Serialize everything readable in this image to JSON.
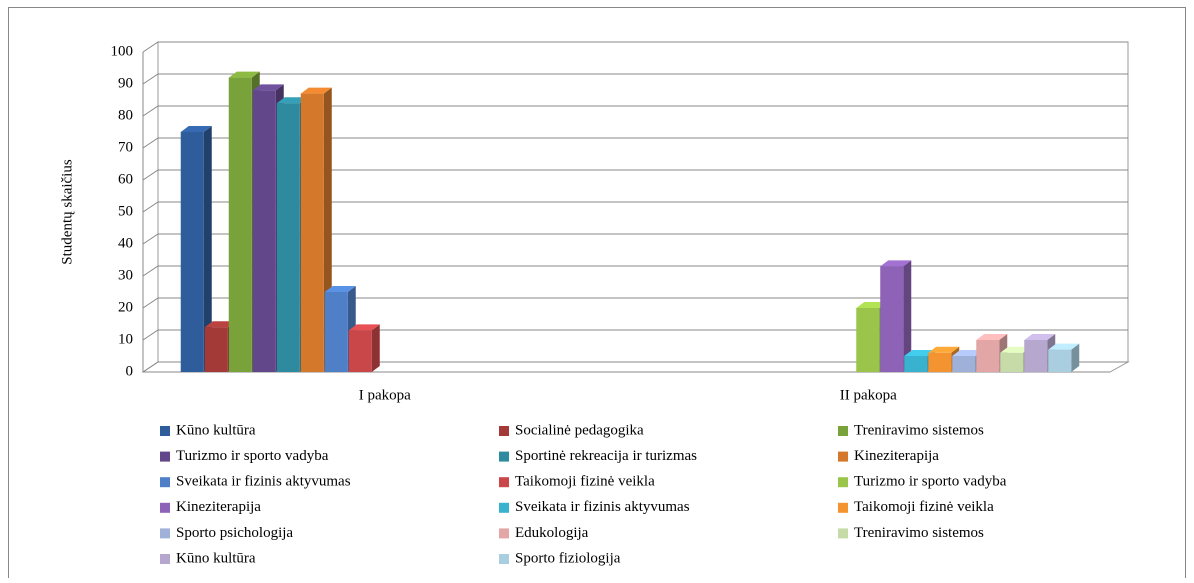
{
  "chart_data": {
    "type": "bar3d",
    "y_label": "Studentų skaičius",
    "categories": [
      "I pakopa",
      "II pakopa"
    ],
    "ylim": [
      0,
      100
    ],
    "yticks": [
      0,
      10,
      20,
      30,
      40,
      50,
      60,
      70,
      80,
      90,
      100
    ],
    "grid": true,
    "legend": "bottom",
    "series": [
      {
        "name": "Kūno kultūra",
        "color": "#2f5d9c",
        "values": [
          75,
          null
        ]
      },
      {
        "name": "Socialinė pedagogika",
        "color": "#a33a37",
        "values": [
          14,
          null
        ]
      },
      {
        "name": "Treniravimo sistemos",
        "color": "#7aa23a",
        "values": [
          92,
          null
        ]
      },
      {
        "name": "Turizmo ir sporto vadyba",
        "color": "#62478a",
        "values": [
          88,
          null
        ]
      },
      {
        "name": "Sportinė rekreacija ir turizmas",
        "color": "#2e8b9f",
        "values": [
          84,
          null
        ]
      },
      {
        "name": "Kineziterapija",
        "color": "#d4792b",
        "values": [
          87,
          null
        ]
      },
      {
        "name": "Sveikata ir fizinis aktyvumas",
        "color": "#4e7fc7",
        "values": [
          25,
          null
        ]
      },
      {
        "name": "Taikomoji fizinė veikla",
        "color": "#c94649",
        "values": [
          13,
          null
        ]
      },
      {
        "name": "Turizmo ir sporto vadyba",
        "color": "#9bc54a",
        "values": [
          null,
          20
        ]
      },
      {
        "name": "Kineziterapija",
        "color": "#8d62b7",
        "values": [
          null,
          33
        ]
      },
      {
        "name": "Sveikata ir fizinis aktyvumas",
        "color": "#39b2cf",
        "values": [
          null,
          5
        ]
      },
      {
        "name": "Taikomoji fizinė veikla",
        "color": "#f39431",
        "values": [
          null,
          6
        ]
      },
      {
        "name": "Sporto psichologija",
        "color": "#9fb1d9",
        "values": [
          null,
          5
        ]
      },
      {
        "name": "Edukologija",
        "color": "#e3a6a6",
        "values": [
          null,
          10
        ]
      },
      {
        "name": "Treniravimo sistemos",
        "color": "#c7dba9",
        "values": [
          null,
          6
        ]
      },
      {
        "name": "Kūno kultūra",
        "color": "#b6a7ce",
        "values": [
          null,
          10
        ]
      },
      {
        "name": "Sporto fiziologija",
        "color": "#a8cee0",
        "values": [
          null,
          7
        ]
      }
    ]
  }
}
